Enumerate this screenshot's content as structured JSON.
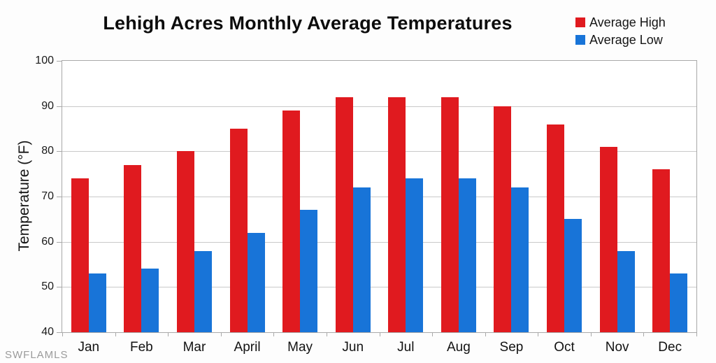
{
  "title": "Lehigh Acres Monthly Average Temperatures",
  "watermark": "SWFLAMLS",
  "colors": {
    "high": "#e01a1f",
    "low": "#1874d8",
    "grid": "#c9c9c9",
    "axis": "#a9a9a9",
    "watermark": "#9b9b9b"
  },
  "chart_data": {
    "type": "bar",
    "title": "Lehigh Acres Monthly Average Temperatures",
    "categories": [
      "Jan",
      "Feb",
      "Mar",
      "April",
      "May",
      "Jun",
      "Jul",
      "Aug",
      "Sep",
      "Oct",
      "Nov",
      "Dec"
    ],
    "series": [
      {
        "name": "Average High",
        "color": "#e01a1f",
        "values": [
          74,
          77,
          80,
          85,
          89,
          92,
          92,
          92,
          90,
          86,
          81,
          76
        ]
      },
      {
        "name": "Average Low",
        "color": "#1874d8",
        "values": [
          53,
          54,
          58,
          62,
          67,
          72,
          74,
          74,
          72,
          65,
          58,
          53
        ]
      }
    ],
    "xlabel": "",
    "ylabel": "Temperature (°F)",
    "ylim": [
      40,
      100
    ],
    "yticks": [
      100,
      90,
      80,
      70,
      60,
      50,
      40
    ],
    "grid": true,
    "legend_position": "top-right"
  }
}
